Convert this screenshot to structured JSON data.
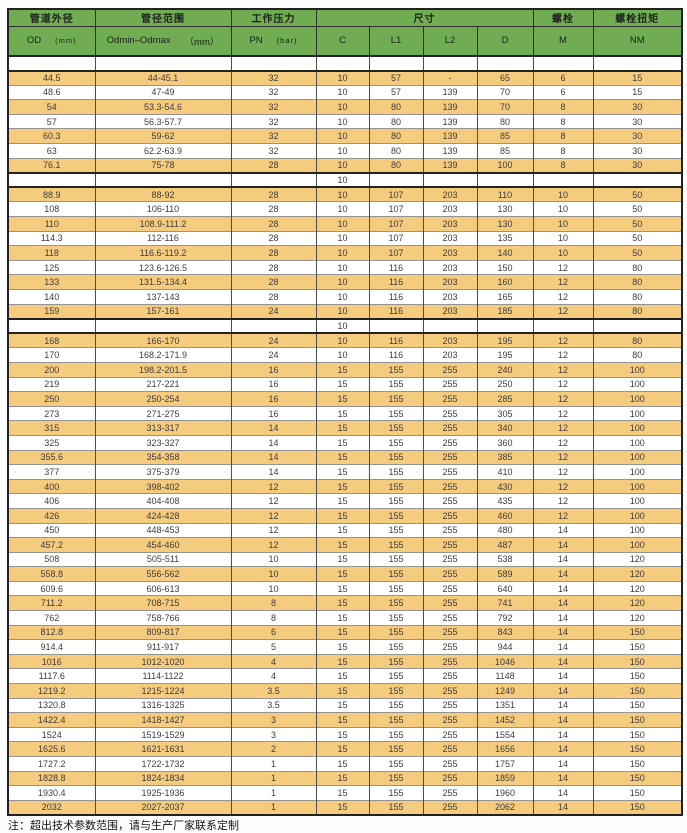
{
  "colors": {
    "header_green": "#70ac52",
    "row_orange": "#f5cb7e"
  },
  "header": {
    "group1": {
      "title": "管道外径",
      "sub": "OD",
      "unit": "(mm)"
    },
    "group2": {
      "title": "管径范围",
      "sub": "Odmin–Odmax",
      "unit": "（mm）"
    },
    "group3": {
      "title": "工作压力",
      "sub": "PN",
      "unit": "(bar)"
    },
    "size": {
      "title": "尺寸",
      "subs": [
        "C",
        "L1",
        "L2",
        "D"
      ]
    },
    "bolt": {
      "title": "螺栓",
      "sub": "M"
    },
    "torque": {
      "title": "螺栓扭矩",
      "sub": "NM"
    }
  },
  "table": {
    "col_keys": [
      "od",
      "range",
      "pn",
      "c",
      "l1",
      "l2",
      "d",
      "m",
      "nm"
    ],
    "rows": [
      {
        "t": "blank",
        "bg": "w",
        "c": [
          "",
          "",
          "",
          "",
          "",
          "",
          "",
          "",
          ""
        ]
      },
      {
        "t": "d",
        "bg": "o",
        "c": [
          "44.5",
          "44-45.1",
          "32",
          "10",
          "57",
          "-",
          "65",
          "6",
          "15"
        ]
      },
      {
        "t": "d",
        "bg": "w",
        "c": [
          "48.6",
          "47-49",
          "32",
          "10",
          "57",
          "139",
          "70",
          "6",
          "15"
        ]
      },
      {
        "t": "d",
        "bg": "o",
        "c": [
          "54",
          "53.3-54.6",
          "32",
          "10",
          "80",
          "139",
          "70",
          "8",
          "30"
        ]
      },
      {
        "t": "d",
        "bg": "w",
        "c": [
          "57",
          "56.3-57.7",
          "32",
          "10",
          "80",
          "139",
          "80",
          "8",
          "30"
        ]
      },
      {
        "t": "d",
        "bg": "o",
        "c": [
          "60.3",
          "59-62",
          "32",
          "10",
          "80",
          "139",
          "85",
          "8",
          "30"
        ]
      },
      {
        "t": "d",
        "bg": "w",
        "c": [
          "63",
          "62.2-63.9",
          "32",
          "10",
          "80",
          "139",
          "85",
          "8",
          "30"
        ]
      },
      {
        "t": "d",
        "bg": "o",
        "c": [
          "76.1",
          "75-78",
          "28",
          "10",
          "80",
          "139",
          "100",
          "8",
          "30"
        ]
      },
      {
        "t": "sep",
        "bg": "w",
        "c": [
          "",
          "",
          "",
          "10",
          "",
          "",
          "",
          "",
          ""
        ]
      },
      {
        "t": "d",
        "bg": "o",
        "c": [
          "88.9",
          "88-92",
          "28",
          "10",
          "107",
          "203",
          "110",
          "10",
          "50"
        ]
      },
      {
        "t": "d",
        "bg": "w",
        "c": [
          "108",
          "106-110",
          "28",
          "10",
          "107",
          "203",
          "130",
          "10",
          "50"
        ]
      },
      {
        "t": "d",
        "bg": "o",
        "c": [
          "110",
          "108.9-111.2",
          "28",
          "10",
          "107",
          "203",
          "130",
          "10",
          "50"
        ]
      },
      {
        "t": "d",
        "bg": "w",
        "c": [
          "114.3",
          "112-116",
          "28",
          "10",
          "107",
          "203",
          "135",
          "10",
          "50"
        ]
      },
      {
        "t": "d",
        "bg": "o",
        "c": [
          "118",
          "116.6-119.2",
          "28",
          "10",
          "107",
          "203",
          "140",
          "10",
          "50"
        ]
      },
      {
        "t": "d",
        "bg": "w",
        "c": [
          "125",
          "123.6-126.5",
          "28",
          "10",
          "116",
          "203",
          "150",
          "12",
          "80"
        ]
      },
      {
        "t": "d",
        "bg": "o",
        "c": [
          "133",
          "131.5-134.4",
          "28",
          "10",
          "116",
          "203",
          "160",
          "12",
          "80"
        ]
      },
      {
        "t": "d",
        "bg": "w",
        "c": [
          "140",
          "137-143",
          "28",
          "10",
          "116",
          "203",
          "165",
          "12",
          "80"
        ]
      },
      {
        "t": "d",
        "bg": "o",
        "c": [
          "159",
          "157-161",
          "24",
          "10",
          "116",
          "203",
          "185",
          "12",
          "80"
        ]
      },
      {
        "t": "sep",
        "bg": "w",
        "c": [
          "",
          "",
          "",
          "10",
          "",
          "",
          "",
          "",
          ""
        ]
      },
      {
        "t": "d",
        "bg": "o",
        "c": [
          "168",
          "166-170",
          "24",
          "10",
          "116",
          "203",
          "195",
          "12",
          "80"
        ]
      },
      {
        "t": "d",
        "bg": "w",
        "c": [
          "170",
          "168.2-171.9",
          "24",
          "10",
          "116",
          "203",
          "195",
          "12",
          "80"
        ]
      },
      {
        "t": "d",
        "bg": "o",
        "c": [
          "200",
          "198.2-201.5",
          "16",
          "15",
          "155",
          "255",
          "240",
          "12",
          "100"
        ]
      },
      {
        "t": "d",
        "bg": "w",
        "c": [
          "219",
          "217-221",
          "16",
          "15",
          "155",
          "255",
          "250",
          "12",
          "100"
        ]
      },
      {
        "t": "d",
        "bg": "o",
        "c": [
          "250",
          "250-254",
          "16",
          "15",
          "155",
          "255",
          "285",
          "12",
          "100"
        ]
      },
      {
        "t": "d",
        "bg": "w",
        "c": [
          "273",
          "271-275",
          "16",
          "15",
          "155",
          "255",
          "305",
          "12",
          "100"
        ]
      },
      {
        "t": "d",
        "bg": "o",
        "c": [
          "315",
          "313-317",
          "14",
          "15",
          "155",
          "255",
          "340",
          "12",
          "100"
        ]
      },
      {
        "t": "d",
        "bg": "w",
        "c": [
          "325",
          "323-327",
          "14",
          "15",
          "155",
          "255",
          "360",
          "12",
          "100"
        ]
      },
      {
        "t": "d",
        "bg": "o",
        "c": [
          "355.6",
          "354-358",
          "14",
          "15",
          "155",
          "255",
          "385",
          "12",
          "100"
        ]
      },
      {
        "t": "d",
        "bg": "w",
        "c": [
          "377",
          "375-379",
          "14",
          "15",
          "155",
          "255",
          "410",
          "12",
          "100"
        ]
      },
      {
        "t": "d",
        "bg": "o",
        "c": [
          "400",
          "398-402",
          "12",
          "15",
          "155",
          "255",
          "430",
          "12",
          "100"
        ]
      },
      {
        "t": "d",
        "bg": "w",
        "c": [
          "406",
          "404-408",
          "12",
          "15",
          "155",
          "255",
          "435",
          "12",
          "100"
        ]
      },
      {
        "t": "d",
        "bg": "o",
        "c": [
          "426",
          "424-428",
          "12",
          "15",
          "155",
          "255",
          "460",
          "12",
          "100"
        ]
      },
      {
        "t": "d",
        "bg": "w",
        "c": [
          "450",
          "448-453",
          "12",
          "15",
          "155",
          "255",
          "480",
          "14",
          "100"
        ]
      },
      {
        "t": "d",
        "bg": "o",
        "c": [
          "457.2",
          "454-460",
          "12",
          "15",
          "155",
          "255",
          "487",
          "14",
          "100"
        ]
      },
      {
        "t": "d",
        "bg": "w",
        "c": [
          "508",
          "505-511",
          "10",
          "15",
          "155",
          "255",
          "538",
          "14",
          "120"
        ]
      },
      {
        "t": "d",
        "bg": "o",
        "c": [
          "558.8",
          "556-562",
          "10",
          "15",
          "155",
          "255",
          "589",
          "14",
          "120"
        ]
      },
      {
        "t": "d",
        "bg": "w",
        "c": [
          "609.6",
          "606-613",
          "10",
          "15",
          "155",
          "255",
          "640",
          "14",
          "120"
        ]
      },
      {
        "t": "d",
        "bg": "o",
        "c": [
          "711.2",
          "708-715",
          "8",
          "15",
          "155",
          "255",
          "741",
          "14",
          "120"
        ]
      },
      {
        "t": "d",
        "bg": "w",
        "c": [
          "762",
          "758-766",
          "8",
          "15",
          "155",
          "255",
          "792",
          "14",
          "120"
        ]
      },
      {
        "t": "d",
        "bg": "o",
        "c": [
          "812.8",
          "809-817",
          "6",
          "15",
          "155",
          "255",
          "843",
          "14",
          "150"
        ]
      },
      {
        "t": "d",
        "bg": "w",
        "c": [
          "914.4",
          "911-917",
          "5",
          "15",
          "155",
          "255",
          "944",
          "14",
          "150"
        ]
      },
      {
        "t": "d",
        "bg": "o",
        "c": [
          "1016",
          "1012-1020",
          "4",
          "15",
          "155",
          "255",
          "1046",
          "14",
          "150"
        ]
      },
      {
        "t": "d",
        "bg": "w",
        "c": [
          "1117.6",
          "1114-1122",
          "4",
          "15",
          "155",
          "255",
          "1148",
          "14",
          "150"
        ]
      },
      {
        "t": "d",
        "bg": "o",
        "c": [
          "1219.2",
          "1215-1224",
          "3.5",
          "15",
          "155",
          "255",
          "1249",
          "14",
          "150"
        ]
      },
      {
        "t": "d",
        "bg": "w",
        "c": [
          "1320.8",
          "1316-1325",
          "3.5",
          "15",
          "155",
          "255",
          "1351",
          "14",
          "150"
        ]
      },
      {
        "t": "d",
        "bg": "o",
        "c": [
          "1422.4",
          "1418-1427",
          "3",
          "15",
          "155",
          "255",
          "1452",
          "14",
          "150"
        ]
      },
      {
        "t": "d",
        "bg": "w",
        "c": [
          "1524",
          "1519-1529",
          "3",
          "15",
          "155",
          "255",
          "1554",
          "14",
          "150"
        ]
      },
      {
        "t": "d",
        "bg": "o",
        "c": [
          "1625.6",
          "1621-1631",
          "2",
          "15",
          "155",
          "255",
          "1656",
          "14",
          "150"
        ]
      },
      {
        "t": "d",
        "bg": "w",
        "c": [
          "1727.2",
          "1722-1732",
          "1",
          "15",
          "155",
          "255",
          "1757",
          "14",
          "150"
        ]
      },
      {
        "t": "d",
        "bg": "o",
        "c": [
          "1828.8",
          "1824-1834",
          "1",
          "15",
          "155",
          "255",
          "1859",
          "14",
          "150"
        ]
      },
      {
        "t": "d",
        "bg": "w",
        "c": [
          "1930.4",
          "1925-1936",
          "1",
          "15",
          "155",
          "255",
          "1960",
          "14",
          "150"
        ]
      },
      {
        "t": "d",
        "bg": "o",
        "c": [
          "2032",
          "2027-2037",
          "1",
          "15",
          "155",
          "255",
          "2062",
          "14",
          "150"
        ]
      }
    ]
  },
  "footnote": "注：超出技术参数范围，请与生产厂家联系定制"
}
